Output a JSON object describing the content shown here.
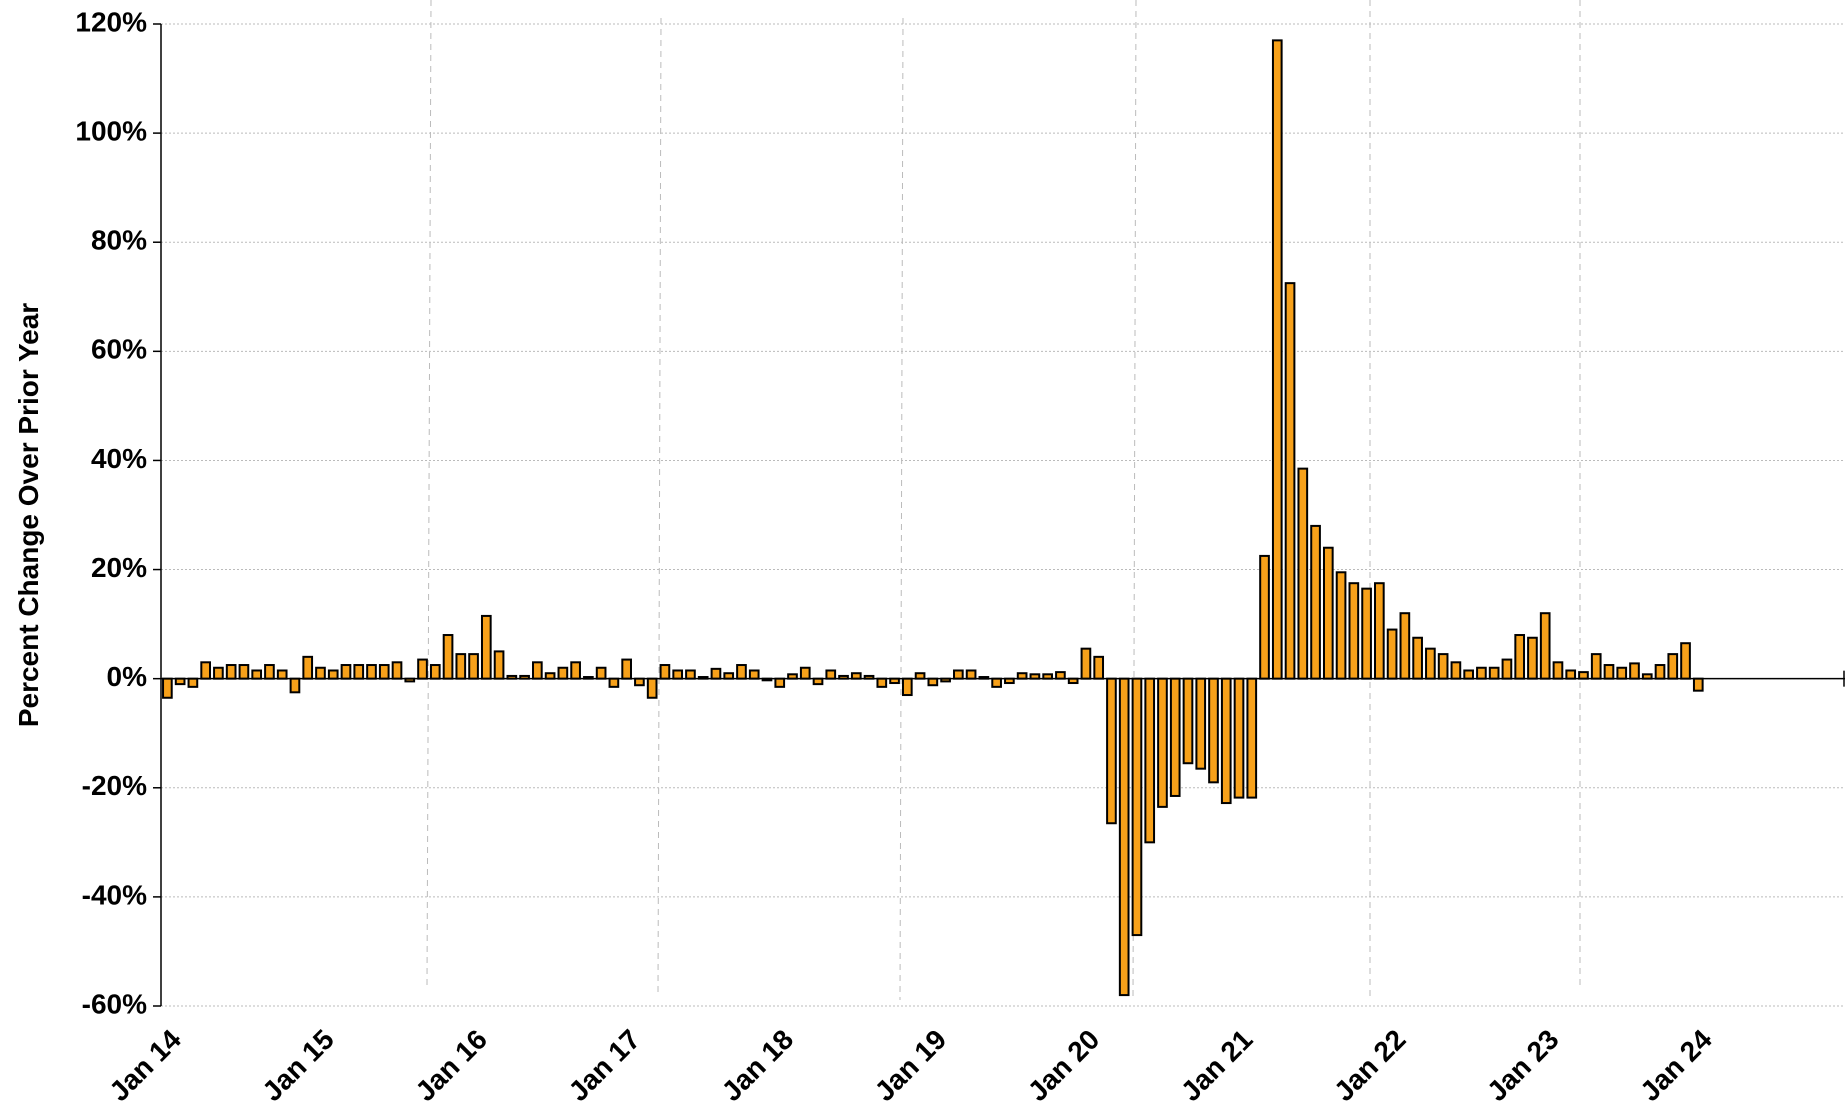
{
  "chart_data": {
    "type": "bar",
    "y_label": "Percent Change Over Prior Year",
    "categories": [
      "Jan 14",
      null,
      null,
      null,
      null,
      null,
      null,
      null,
      null,
      null,
      null,
      null,
      "Jan 15",
      null,
      null,
      null,
      null,
      null,
      null,
      null,
      null,
      null,
      null,
      null,
      "Jan 16",
      null,
      null,
      null,
      null,
      null,
      null,
      null,
      null,
      null,
      null,
      null,
      "Jan 17",
      null,
      null,
      null,
      null,
      null,
      null,
      null,
      null,
      null,
      null,
      null,
      "Jan 18",
      null,
      null,
      null,
      null,
      null,
      null,
      null,
      null,
      null,
      null,
      null,
      "Jan 19",
      null,
      null,
      null,
      null,
      null,
      null,
      null,
      null,
      null,
      null,
      null,
      "Jan 20",
      null,
      null,
      null,
      null,
      null,
      null,
      null,
      null,
      null,
      null,
      null,
      "Jan 21",
      null,
      null,
      null,
      null,
      null,
      null,
      null,
      null,
      null,
      null,
      null,
      "Jan 22",
      null,
      null,
      null,
      null,
      null,
      null,
      null,
      null,
      null,
      null,
      null,
      "Jan 23",
      null,
      null,
      null,
      null,
      null,
      null,
      null,
      null,
      null,
      null,
      null,
      "Jan 24",
      null,
      null,
      null,
      null,
      null,
      null,
      null,
      null,
      null,
      null,
      null
    ],
    "values": [
      -3.5,
      -1,
      -1.5,
      3,
      2,
      2.5,
      2.5,
      1.5,
      2.5,
      1.5,
      -2.5,
      4,
      2,
      1.5,
      2.5,
      2.5,
      2.5,
      2.5,
      3,
      -0.5,
      3.5,
      2.5,
      8,
      4.5,
      4.5,
      11.5,
      5,
      0.5,
      0.5,
      3,
      1,
      2,
      3,
      0.3,
      2,
      -1.5,
      3.5,
      -1.2,
      -3.5,
      2.5,
      1.5,
      1.5,
      0.3,
      1.8,
      1,
      2.5,
      1.5,
      -0.3,
      -1.5,
      0.8,
      2,
      -1,
      1.5,
      0.5,
      1,
      0.5,
      -1.5,
      -0.8,
      -3,
      1,
      -1.2,
      -0.5,
      1.5,
      1.5,
      0.3,
      -1.5,
      -0.8,
      1,
      0.8,
      0.8,
      1.2,
      -0.8,
      5.5,
      4,
      -26.5,
      -58,
      -47,
      -30,
      -23.5,
      -21.5,
      -15.5,
      -16.5,
      -19,
      -22.8,
      -21.8,
      -21.8,
      22.5,
      117,
      72.5,
      38.5,
      28,
      24,
      19.5,
      17.5,
      16.5,
      17.5,
      9,
      12,
      7.5,
      5.5,
      4.5,
      3,
      1.5,
      2,
      2,
      3.5,
      8,
      7.5,
      12,
      3,
      1.5,
      1.2,
      4.5,
      2.5,
      2,
      2.8,
      0.8,
      2.5,
      4.5,
      6.5,
      -2.2,
      null,
      null,
      null,
      null,
      null,
      null,
      null,
      null,
      null,
      null,
      null
    ],
    "color": "#f7a11a",
    "ylim": [
      -60,
      120
    ],
    "yticks": [
      {
        "value": -60,
        "label": "-60%"
      },
      {
        "value": -40,
        "label": "-40%"
      },
      {
        "value": -20,
        "label": "-20%"
      },
      {
        "value": 0,
        "label": "0%"
      },
      {
        "value": 20,
        "label": "20%"
      },
      {
        "value": 40,
        "label": "40%"
      },
      {
        "value": 60,
        "label": "60%"
      },
      {
        "value": 80,
        "label": "80%"
      },
      {
        "value": 100,
        "label": "100%"
      },
      {
        "value": 120,
        "label": "120%"
      }
    ],
    "grid": true
  }
}
